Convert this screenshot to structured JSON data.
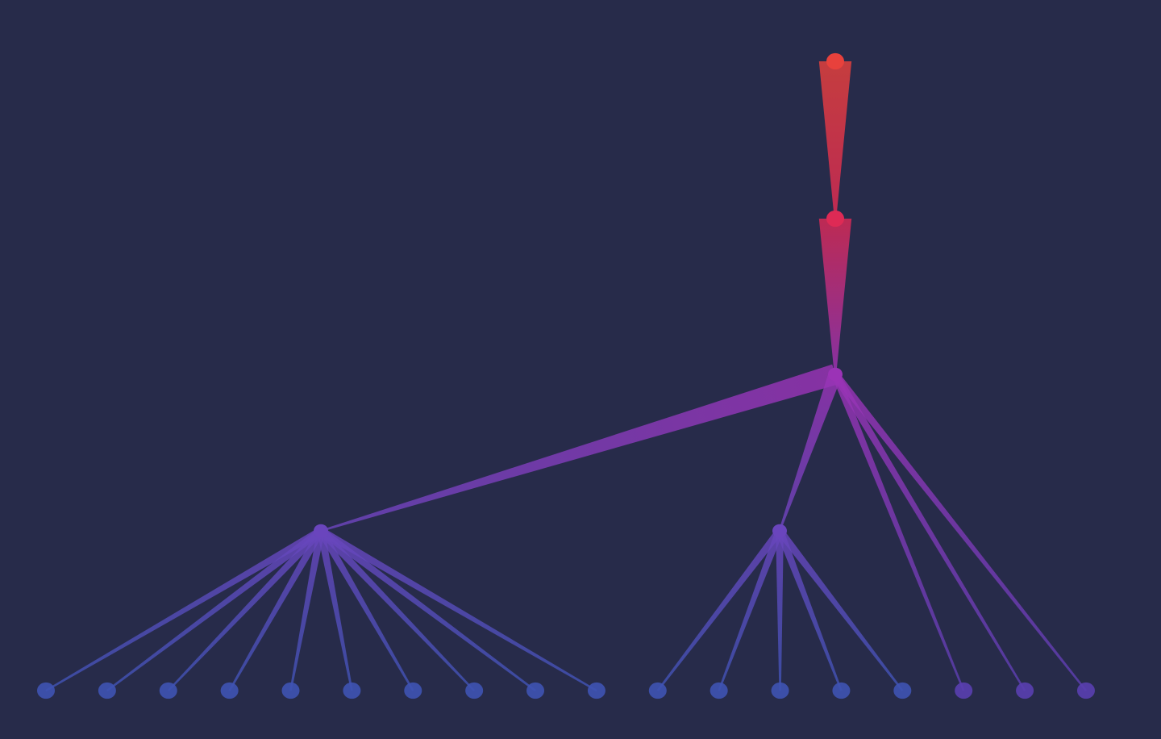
{
  "diagram": {
    "type": "tree",
    "background": "#272b4a",
    "nodes": [
      {
        "id": "n0",
        "level": 0,
        "color": "#e8413c"
      },
      {
        "id": "n1",
        "level": 1,
        "parent": "n0",
        "color": "#de2a55"
      },
      {
        "id": "n2",
        "level": 2,
        "parent": "n1",
        "color": "#9b33b6"
      },
      {
        "id": "n3",
        "level": 3,
        "parent": "n2",
        "color": "#6a45bd"
      },
      {
        "id": "n4",
        "level": 3,
        "parent": "n2",
        "color": "#6a45bd"
      },
      {
        "id": "l0",
        "level": 4,
        "parent": "n3",
        "color": "#3f53b3"
      },
      {
        "id": "l1",
        "level": 4,
        "parent": "n3",
        "color": "#3f53b3"
      },
      {
        "id": "l2",
        "level": 4,
        "parent": "n3",
        "color": "#3f53b3"
      },
      {
        "id": "l3",
        "level": 4,
        "parent": "n3",
        "color": "#3f53b3"
      },
      {
        "id": "l4",
        "level": 4,
        "parent": "n3",
        "color": "#3f53b3"
      },
      {
        "id": "l5",
        "level": 4,
        "parent": "n3",
        "color": "#3f53b3"
      },
      {
        "id": "l6",
        "level": 4,
        "parent": "n3",
        "color": "#3f53b3"
      },
      {
        "id": "l7",
        "level": 4,
        "parent": "n3",
        "color": "#3f53b3"
      },
      {
        "id": "l8",
        "level": 4,
        "parent": "n3",
        "color": "#3f53b3"
      },
      {
        "id": "l9",
        "level": 4,
        "parent": "n3",
        "color": "#3f53b3"
      },
      {
        "id": "l10",
        "level": 4,
        "parent": "n4",
        "color": "#3f53b3"
      },
      {
        "id": "l11",
        "level": 4,
        "parent": "n4",
        "color": "#3f53b3"
      },
      {
        "id": "l12",
        "level": 4,
        "parent": "n4",
        "color": "#3f53b3"
      },
      {
        "id": "l13",
        "level": 4,
        "parent": "n4",
        "color": "#3f53b3"
      },
      {
        "id": "l14",
        "level": 4,
        "parent": "n4",
        "color": "#3f53b3"
      },
      {
        "id": "l15",
        "level": 4,
        "parent": "n2",
        "color": "#5a3fb0"
      },
      {
        "id": "l16",
        "level": 4,
        "parent": "n2",
        "color": "#5a3fb0"
      },
      {
        "id": "l17",
        "level": 4,
        "parent": "n2",
        "color": "#5a3fb0"
      }
    ]
  }
}
